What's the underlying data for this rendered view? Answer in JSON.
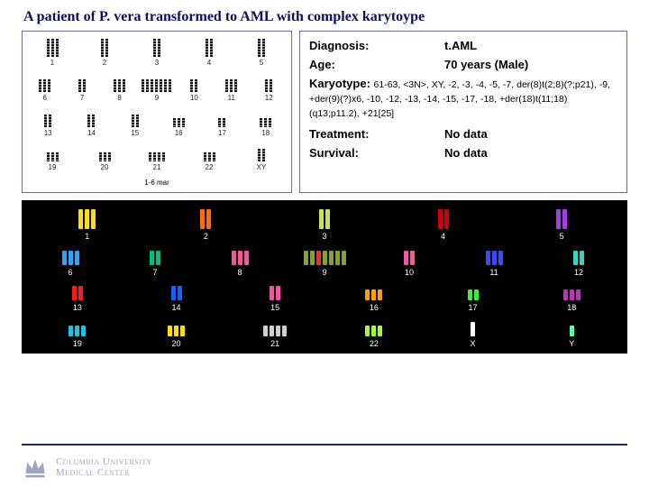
{
  "title": "A patient of P. vera transformed to AML with complex karytoype",
  "info": {
    "diagnosis_label": "Diagnosis:",
    "diagnosis_value": "t.AML",
    "age_label": "Age:",
    "age_value": "70 years (Male)",
    "karyotype_label": "Karyotype:",
    "karyotype_value": "61-63, <3N>, XY, -2, -3, -4, -5, -7, der(8)t(2;8)(?;p21), -9, +der(9)(?)x6, -10, -12, -13, -14, -15, -17, -18, +der(18)t(11;18)(q13;p11.2), +21[25]",
    "treatment_label": "Treatment:",
    "treatment_value": "No data",
    "survival_label": "Survival:",
    "survival_value": "No data"
  },
  "karyogram": {
    "rows": [
      [
        {
          "n": "1",
          "c": 3,
          "sz": ""
        },
        {
          "n": "2",
          "c": 2,
          "sz": ""
        },
        {
          "n": "3",
          "c": 2,
          "sz": ""
        },
        {
          "n": "4",
          "c": 2,
          "sz": ""
        },
        {
          "n": "5",
          "c": 2,
          "sz": ""
        }
      ],
      [
        {
          "n": "6",
          "c": 3,
          "sz": "s"
        },
        {
          "n": "7",
          "c": 2,
          "sz": "s"
        },
        {
          "n": "8",
          "c": 3,
          "sz": "s"
        },
        {
          "n": "9",
          "c": 7,
          "sz": "s"
        },
        {
          "n": "10",
          "c": 2,
          "sz": "s"
        },
        {
          "n": "11",
          "c": 3,
          "sz": "s"
        },
        {
          "n": "12",
          "c": 2,
          "sz": "s"
        }
      ],
      [
        {
          "n": "13",
          "c": 2,
          "sz": "s"
        },
        {
          "n": "14",
          "c": 2,
          "sz": "s"
        },
        {
          "n": "15",
          "c": 2,
          "sz": "s"
        },
        {
          "n": "16",
          "c": 3,
          "sz": "xs"
        },
        {
          "n": "17",
          "c": 2,
          "sz": "xs"
        },
        {
          "n": "18",
          "c": 3,
          "sz": "xs"
        }
      ],
      [
        {
          "n": "19",
          "c": 3,
          "sz": "xs"
        },
        {
          "n": "20",
          "c": 3,
          "sz": "xs"
        },
        {
          "n": "21",
          "c": 4,
          "sz": "xs"
        },
        {
          "n": "22",
          "c": 3,
          "sz": "xs"
        },
        {
          "n": "XY",
          "c": 2,
          "sz": "s"
        }
      ]
    ],
    "mar_label": "1-6 mar"
  },
  "sky": {
    "background": "#000000",
    "rows": [
      [
        {
          "n": "1",
          "c": [
            "#ffe000",
            "#ffe000",
            "#ffe000"
          ],
          "sz": ""
        },
        {
          "n": "2",
          "c": [
            "#ff6c00",
            "#ff6c00"
          ],
          "sz": ""
        },
        {
          "n": "3",
          "c": [
            "#c6e260",
            "#c6e260"
          ],
          "sz": ""
        },
        {
          "n": "4",
          "c": [
            "#d00000",
            "#d00000"
          ],
          "sz": ""
        },
        {
          "n": "5",
          "c": [
            "#a040e0",
            "#a040e0"
          ],
          "sz": ""
        }
      ],
      [
        {
          "n": "6",
          "c": [
            "#2aa5ff",
            "#2aa5ff",
            "#2aa5ff"
          ],
          "sz": "s"
        },
        {
          "n": "7",
          "c": [
            "#00c080",
            "#00c080"
          ],
          "sz": "s"
        },
        {
          "n": "8",
          "c": [
            "#ff4fa0",
            "#ff4fa0",
            "#ff4fa0"
          ],
          "sz": "s"
        },
        {
          "n": "9",
          "c": [
            "#88a030",
            "#88a030",
            "#ff2a2a",
            "#88a030",
            "#88a030",
            "#88a030",
            "#88a030"
          ],
          "sz": "s"
        },
        {
          "n": "10",
          "c": [
            "#ef5aa0",
            "#ef5aa0"
          ],
          "sz": "s"
        },
        {
          "n": "11",
          "c": [
            "#3050ff",
            "#3050ff",
            "#3050ff"
          ],
          "sz": "s"
        },
        {
          "n": "12",
          "c": [
            "#3ad0c0",
            "#3ad0c0"
          ],
          "sz": "s"
        }
      ],
      [
        {
          "n": "13",
          "c": [
            "#ff1a1a",
            "#ff1a1a"
          ],
          "sz": "s"
        },
        {
          "n": "14",
          "c": [
            "#1f5fff",
            "#1f5fff"
          ],
          "sz": "s"
        },
        {
          "n": "15",
          "c": [
            "#ff4fa0",
            "#ff4fa0"
          ],
          "sz": "s"
        },
        {
          "n": "16",
          "c": [
            "#ffa000",
            "#ffa000",
            "#ffa000"
          ],
          "sz": "xs"
        },
        {
          "n": "17",
          "c": [
            "#3af03a",
            "#3af03a"
          ],
          "sz": "xs"
        },
        {
          "n": "18",
          "c": [
            "#c030c0",
            "#c030c0",
            "#c030c0"
          ],
          "sz": "xs"
        }
      ],
      [
        {
          "n": "19",
          "c": [
            "#20c0e0",
            "#20c0e0",
            "#20c0e0"
          ],
          "sz": "xs"
        },
        {
          "n": "20",
          "c": [
            "#ffe000",
            "#ffe000",
            "#ffe000"
          ],
          "sz": "xs"
        },
        {
          "n": "21",
          "c": [
            "#d0d0d0",
            "#d0d0d0",
            "#d0d0d0",
            "#d0d0d0"
          ],
          "sz": "xs"
        },
        {
          "n": "22",
          "c": [
            "#a0ff30",
            "#a0ff30",
            "#a0ff30"
          ],
          "sz": "xs"
        },
        {
          "n": "X",
          "c": [
            "#ffffff"
          ],
          "sz": "s"
        },
        {
          "n": "Y",
          "c": [
            "#60ffa0"
          ],
          "sz": "xs"
        }
      ]
    ]
  },
  "footer": {
    "line1": "Columbia University",
    "line2": "Medical Center"
  }
}
